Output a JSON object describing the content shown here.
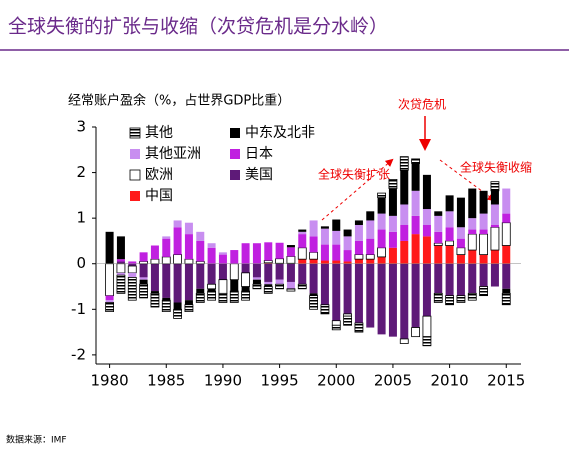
{
  "chart_data": {
    "type": "bar",
    "stacked": true,
    "title": "全球失衡的扩张与收缩（次贷危机是分水岭）",
    "y_label": "经常账户盈余（%，占世界GDP比重）",
    "source": "数据来源：IMF",
    "annotations": [
      "次贷危机",
      "全球失衡扩张",
      "全球失衡收缩"
    ],
    "x": [
      1980,
      1981,
      1982,
      1983,
      1984,
      1985,
      1986,
      1987,
      1988,
      1989,
      1990,
      1991,
      1992,
      1993,
      1994,
      1995,
      1996,
      1997,
      1998,
      1999,
      2000,
      2001,
      2002,
      2003,
      2004,
      2005,
      2006,
      2007,
      2008,
      2009,
      2010,
      2011,
      2012,
      2013,
      2014,
      2015
    ],
    "xlim": [
      1978.8,
      2016.3
    ],
    "xticks": [
      1980,
      1985,
      1990,
      1995,
      2000,
      2005,
      2010,
      2015
    ],
    "ylim": [
      -2.2,
      3
    ],
    "yticks": [
      -2,
      -1,
      0,
      1,
      2,
      3
    ],
    "series": [
      {
        "name": "其他",
        "color": "#000000",
        "pattern": "horizontal-lines",
        "values": [
          -0.2,
          -0.4,
          -0.5,
          -0.3,
          -0.3,
          -0.25,
          -0.2,
          -0.15,
          -0.2,
          -0.2,
          -0.2,
          -0.25,
          -0.2,
          -0.1,
          -0.15,
          -0.1,
          -0.05,
          -0.1,
          -0.3,
          -0.2,
          -0.1,
          -0.2,
          -0.2,
          0,
          0.1,
          0.2,
          0.3,
          0.1,
          -0.2,
          -0.2,
          -0.2,
          -0.15,
          -0.15,
          -0.2,
          0.2,
          -0.25
        ]
      },
      {
        "name": "中东及北非",
        "color": "#000000",
        "values": [
          0.7,
          0.5,
          0,
          -0.1,
          -0.05,
          -0.05,
          -0.15,
          -0.1,
          -0.1,
          -0.05,
          0,
          -0.25,
          -0.1,
          -0.1,
          -0.05,
          0,
          0.05,
          0.05,
          -0.05,
          0.05,
          0.25,
          0.15,
          0.1,
          0.2,
          0.35,
          0.6,
          0.75,
          0.6,
          0.75,
          0.1,
          0.35,
          0.65,
          0.65,
          0.5,
          0.3,
          -0.1
        ]
      },
      {
        "name": "其他亚洲",
        "color": "#c88ef0",
        "values": [
          -0.05,
          -0.05,
          -0.1,
          -0.05,
          0,
          0.05,
          0.15,
          0.25,
          0.2,
          0.1,
          0.05,
          0,
          0,
          -0.05,
          -0.05,
          -0.1,
          -0.15,
          0.05,
          0.35,
          0.35,
          0.3,
          0.3,
          0.35,
          0.4,
          0.35,
          0.35,
          0.45,
          0.55,
          0.35,
          0.35,
          0.35,
          0.25,
          0.25,
          0.35,
          0.45,
          0.55
        ]
      },
      {
        "name": "日本",
        "color": "#c020e0",
        "values": [
          -0.1,
          0.05,
          0.05,
          0.2,
          0.3,
          0.4,
          0.6,
          0.55,
          0.45,
          0.35,
          0.2,
          0.3,
          0.45,
          0.45,
          0.4,
          0.35,
          0.2,
          0.3,
          0.35,
          0.35,
          0.35,
          0.25,
          0.3,
          0.35,
          0.4,
          0.35,
          0.35,
          0.4,
          0.25,
          0.25,
          0.3,
          0.2,
          0.1,
          0.1,
          0.05,
          0.2
        ]
      },
      {
        "name": "欧洲",
        "color": "#ffffff",
        "values": [
          -0.7,
          -0.2,
          -0.15,
          0.05,
          0.1,
          0.15,
          0.2,
          0.1,
          0.05,
          -0.1,
          -0.3,
          -0.35,
          -0.3,
          0,
          0.05,
          0.1,
          0.15,
          0.25,
          0.15,
          0,
          -0.1,
          -0.05,
          0.1,
          0.1,
          0.2,
          0,
          -0.1,
          -0.2,
          -0.45,
          0.05,
          0.1,
          0.15,
          0.35,
          0.45,
          0.5,
          0.5
        ]
      },
      {
        "name": "美国",
        "color": "#5e1a78",
        "values": [
          0,
          0.05,
          -0.05,
          -0.3,
          -0.6,
          -0.75,
          -0.85,
          -0.8,
          -0.55,
          -0.45,
          -0.35,
          0,
          -0.2,
          -0.3,
          -0.4,
          -0.35,
          -0.4,
          -0.45,
          -0.65,
          -0.9,
          -1.25,
          -1.1,
          -1.3,
          -1.4,
          -1.55,
          -1.6,
          -1.65,
          -1.4,
          -1.15,
          -0.65,
          -0.7,
          -0.7,
          -0.65,
          -0.5,
          -0.5,
          -0.55
        ]
      },
      {
        "name": "中国",
        "color": "#ff1a1a",
        "values": [
          0,
          0,
          0,
          0,
          0,
          0,
          0,
          0,
          0,
          0,
          0,
          0,
          0,
          0,
          0.02,
          0.01,
          0.01,
          0.1,
          0.1,
          0.07,
          0.07,
          0.05,
          0.1,
          0.1,
          0.15,
          0.35,
          0.5,
          0.65,
          0.6,
          0.4,
          0.4,
          0.2,
          0.3,
          0.2,
          0.3,
          0.4
        ]
      }
    ]
  }
}
